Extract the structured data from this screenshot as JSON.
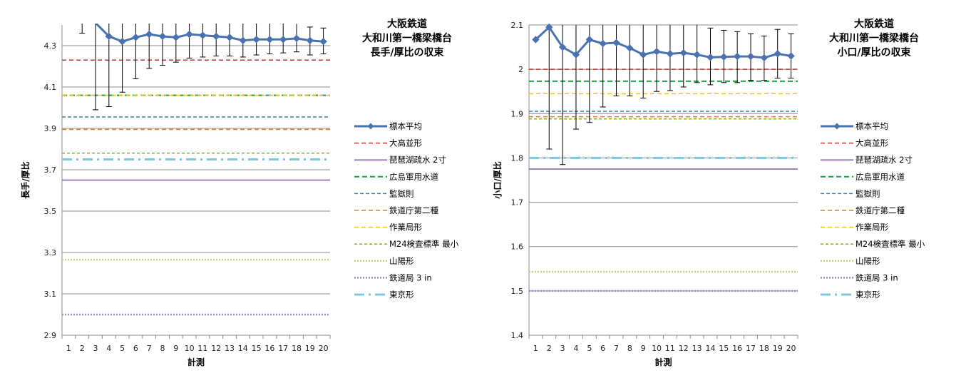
{
  "chart_data": [
    {
      "type": "line",
      "title": [
        "大阪鉄道",
        "大和川第一橋梁橋台",
        "長手/厚比の収束"
      ],
      "xlabel": "計測",
      "ylabel": "長手/厚比",
      "ylim": [
        2.9,
        4.4
      ],
      "yticks": [
        "2.9",
        "3.1",
        "3.3",
        "3.5",
        "3.7",
        "3.9",
        "4.1",
        "4.3"
      ],
      "categories": [
        "1",
        "2",
        "3",
        "4",
        "5",
        "6",
        "7",
        "8",
        "9",
        "10",
        "11",
        "12",
        "13",
        "14",
        "15",
        "16",
        "17",
        "18",
        "19",
        "20"
      ],
      "grid": true,
      "legend_position": "right",
      "series": [
        {
          "name": "標本平均",
          "kind": "mean",
          "color": "#4a72b0",
          "values": [
            null,
            null,
            4.41,
            4.345,
            4.32,
            4.34,
            4.355,
            4.345,
            4.34,
            4.355,
            4.35,
            4.345,
            4.34,
            4.325,
            4.33,
            4.33,
            4.33,
            4.335,
            4.325,
            4.32
          ],
          "err_low": [
            null,
            4.36,
            3.99,
            4.005,
            4.075,
            4.14,
            4.19,
            4.205,
            4.22,
            4.24,
            4.245,
            4.25,
            4.25,
            4.245,
            4.255,
            4.26,
            4.265,
            4.27,
            4.255,
            4.26
          ],
          "err_high": [
            null,
            4.44,
            4.44,
            4.44,
            4.44,
            4.44,
            4.44,
            4.44,
            4.44,
            4.44,
            4.44,
            4.44,
            4.44,
            4.44,
            4.44,
            4.43,
            4.41,
            4.405,
            4.39,
            4.385
          ]
        },
        {
          "name": "大高並形",
          "value": 4.23,
          "color": "#c0392b",
          "dash": "6,4",
          "width": 1.5
        },
        {
          "name": "琵琶湖疏水 2寸",
          "value": 3.65,
          "color": "#7b5ea7",
          "dash": "",
          "width": 1.5
        },
        {
          "name": "広島軍用水道",
          "value": 4.06,
          "color": "#1e9e4c",
          "dash": "7,4",
          "width": 2
        },
        {
          "name": "監獄則",
          "value": 3.955,
          "color": "#2e86c1",
          "dash": "5,3",
          "width": 1.5
        },
        {
          "name": "鉄道庁第二種",
          "value": 3.895,
          "color": "#e67e22",
          "dash": "6,4",
          "width": 1.5
        },
        {
          "name": "作業局形",
          "value": 4.06,
          "color": "#f1c40f",
          "dash": "6,4",
          "width": 1.5
        },
        {
          "name": "M24検査標準 最小",
          "value": 3.78,
          "color": "#8bb03e",
          "dash": "4,3",
          "width": 1.5
        },
        {
          "name": "山陽形",
          "value": 3.265,
          "color": "#c7d08a",
          "dash": "2,2",
          "width": 2.5
        },
        {
          "name": "鉄道局 3 in",
          "value": 3.0,
          "color": "#9b8fc7",
          "dash": "2,2",
          "width": 2.5
        },
        {
          "name": "東京形",
          "value": 3.75,
          "color": "#7fc8d8",
          "dash": "14,6,3,6",
          "width": 3
        }
      ]
    },
    {
      "type": "line",
      "title": [
        "大阪鉄道",
        "大和川第一橋梁橋台",
        "小口/厚比の収束"
      ],
      "xlabel": "計測",
      "ylabel": "小口/厚比",
      "ylim": [
        1.4,
        2.1
      ],
      "yticks": [
        "1.4",
        "1.5",
        "1.6",
        "1.7",
        "1.8",
        "1.9",
        "2",
        "2.1"
      ],
      "categories": [
        "1",
        "2",
        "3",
        "4",
        "5",
        "6",
        "7",
        "8",
        "9",
        "10",
        "11",
        "12",
        "13",
        "14",
        "15",
        "16",
        "17",
        "18",
        "19",
        "20"
      ],
      "grid": true,
      "legend_position": "right",
      "series": [
        {
          "name": "標本平均",
          "kind": "mean",
          "color": "#4a72b0",
          "values": [
            2.067,
            2.095,
            2.05,
            2.033,
            2.067,
            2.058,
            2.06,
            2.048,
            2.033,
            2.04,
            2.035,
            2.037,
            2.033,
            2.027,
            2.028,
            2.029,
            2.029,
            2.026,
            2.035,
            2.03
          ],
          "err_low": [
            null,
            1.82,
            1.785,
            1.865,
            1.88,
            1.915,
            1.94,
            1.94,
            1.935,
            1.95,
            1.952,
            1.96,
            1.97,
            1.965,
            1.97,
            1.97,
            1.975,
            1.975,
            1.98,
            1.98
          ],
          "err_high": [
            null,
            2.1,
            2.1,
            2.1,
            2.1,
            2.1,
            2.1,
            2.1,
            2.1,
            2.1,
            2.1,
            2.1,
            2.1,
            2.093,
            2.088,
            2.085,
            2.08,
            2.075,
            2.09,
            2.08
          ]
        },
        {
          "name": "大高並形",
          "value": 2.0,
          "color": "#c0392b",
          "dash": "6,4",
          "width": 1.5
        },
        {
          "name": "琵琶湖疏水 2寸",
          "value": 1.775,
          "color": "#7b5ea7",
          "dash": "",
          "width": 1.5
        },
        {
          "name": "広島軍用水道",
          "value": 1.973,
          "color": "#1e9e4c",
          "dash": "7,4",
          "width": 2
        },
        {
          "name": "監獄則",
          "value": 1.905,
          "color": "#2e86c1",
          "dash": "5,3",
          "width": 1.5
        },
        {
          "name": "鉄道庁第二種",
          "value": 1.893,
          "color": "#e67e22",
          "dash": "6,4",
          "width": 1.5
        },
        {
          "name": "作業局形",
          "value": 1.945,
          "color": "#f1c40f",
          "dash": "6,4",
          "width": 1.5
        },
        {
          "name": "M24検査標準 最小",
          "value": 1.888,
          "color": "#8bb03e",
          "dash": "4,3",
          "width": 1.5
        },
        {
          "name": "山陽形",
          "value": 1.543,
          "color": "#c7d08a",
          "dash": "2,2",
          "width": 2.5
        },
        {
          "name": "鉄道局 3 in",
          "value": 1.5,
          "color": "#9b8fc7",
          "dash": "2,2",
          "width": 2.5
        },
        {
          "name": "東京形",
          "value": 1.8,
          "color": "#7fc8d8",
          "dash": "14,6,3,6",
          "width": 3
        }
      ]
    }
  ]
}
